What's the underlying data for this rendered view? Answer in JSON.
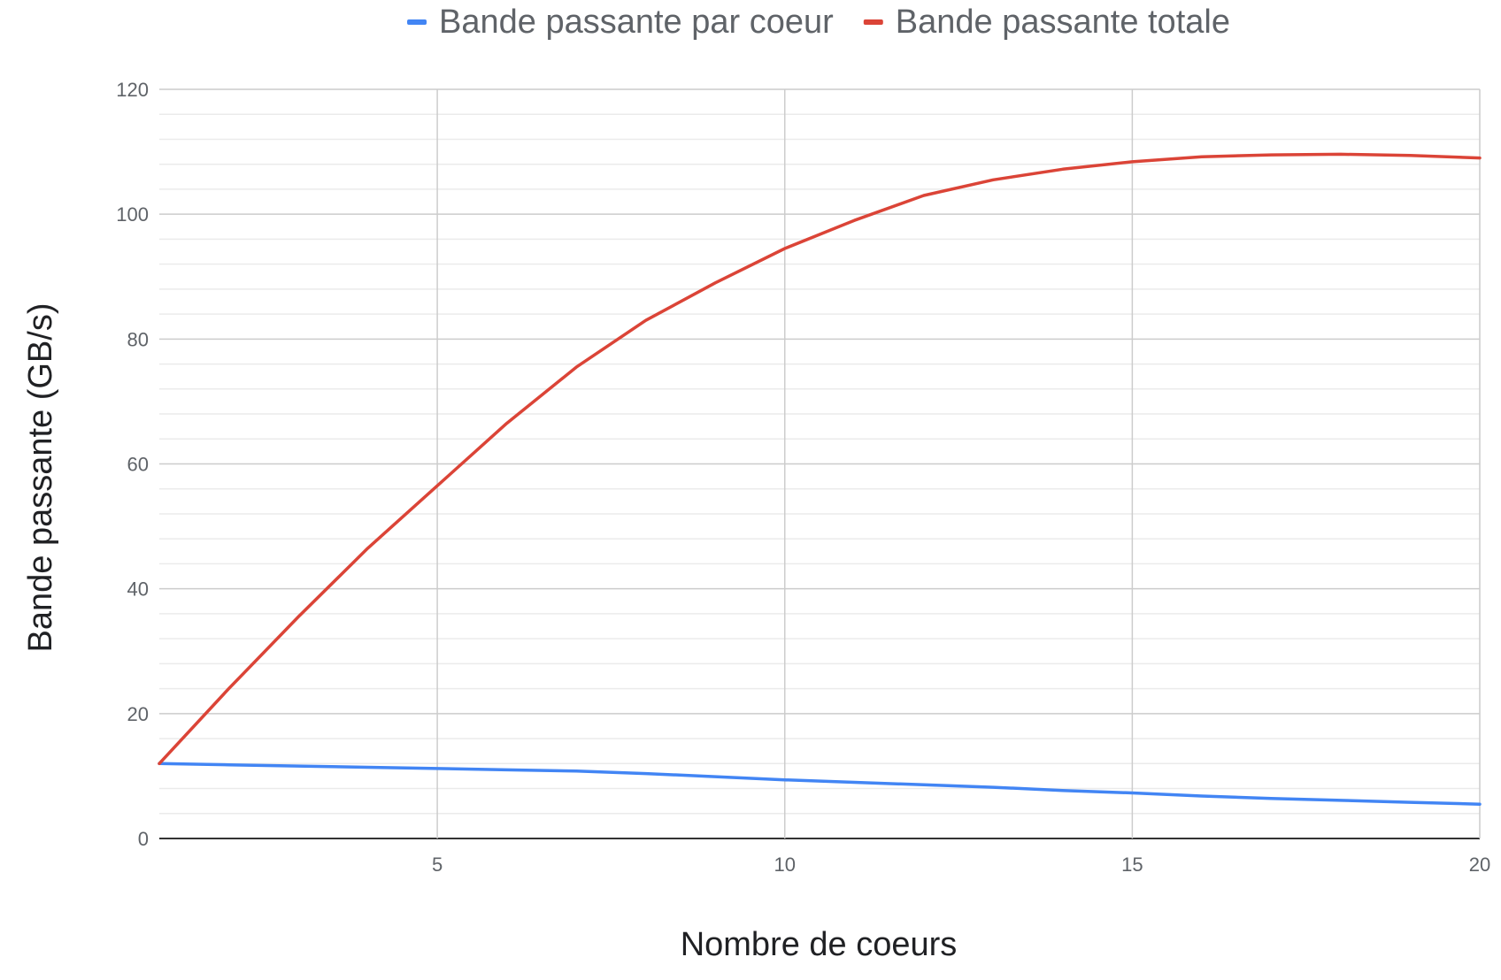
{
  "chart_data": {
    "type": "line",
    "xlabel": "Nombre de coeurs",
    "ylabel": "Bande passante (GB/s)",
    "xlim": [
      1,
      20
    ],
    "ylim": [
      0,
      120
    ],
    "x_ticks": [
      5,
      10,
      15,
      20
    ],
    "y_ticks": [
      0,
      20,
      40,
      60,
      80,
      100,
      120
    ],
    "grid": true,
    "legend_position": "top",
    "x": [
      1,
      2,
      3,
      4,
      5,
      6,
      7,
      8,
      9,
      10,
      11,
      12,
      13,
      14,
      15,
      16,
      17,
      18,
      19,
      20
    ],
    "series": [
      {
        "name": "Bande passante par coeur",
        "color": "#4285f4",
        "values": [
          12.0,
          11.8,
          11.6,
          11.4,
          11.2,
          11.0,
          10.8,
          10.4,
          9.9,
          9.4,
          9.0,
          8.6,
          8.2,
          7.7,
          7.3,
          6.8,
          6.4,
          6.1,
          5.8,
          5.5
        ]
      },
      {
        "name": "Bande passante totale",
        "color": "#db4437",
        "values": [
          12.0,
          24.0,
          35.5,
          46.5,
          56.5,
          66.5,
          75.5,
          83.0,
          89.0,
          94.5,
          99.0,
          103.0,
          105.5,
          107.2,
          108.4,
          109.2,
          109.5,
          109.6,
          109.4,
          109.0
        ]
      }
    ]
  }
}
